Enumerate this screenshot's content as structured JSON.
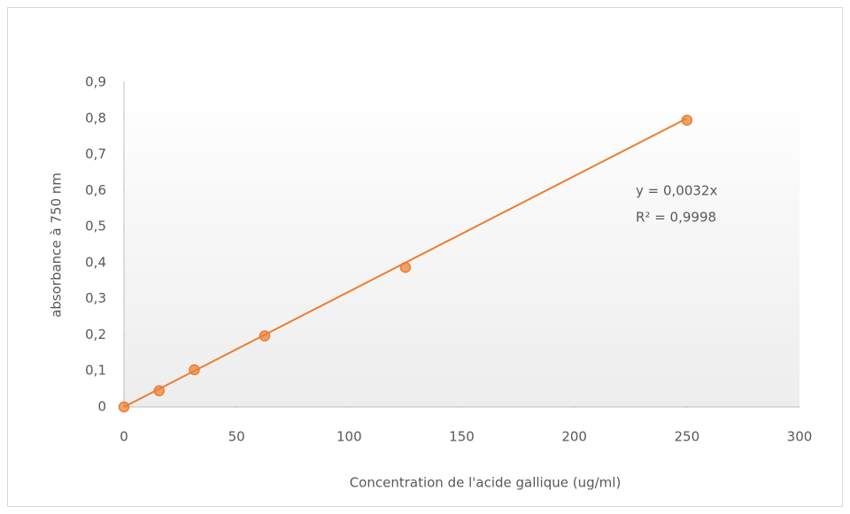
{
  "chart_data": {
    "type": "scatter",
    "x_label": "Concentration de l'acide gallique  (ug/ml)",
    "y_label": "absorbance à 750 nm",
    "series": [
      {
        "name": "absorbance",
        "color": "#ed7d31",
        "x": [
          0,
          15.625,
          31.25,
          62.5,
          125,
          250
        ],
        "values": [
          0,
          0.045,
          0.103,
          0.197,
          0.387,
          0.795
        ]
      }
    ],
    "trendline": {
      "slope": 0.0032,
      "equation": "y = 0,0032x",
      "r2": "R² = 0,9998"
    },
    "xlim": [
      0,
      300
    ],
    "xticks": [
      0,
      50,
      100,
      150,
      200,
      250,
      300
    ],
    "ylim": [
      0,
      0.9
    ],
    "yticks": [
      0,
      {
        "value": 0.1,
        "label": "0,1"
      },
      {
        "value": 0.2,
        "label": "0,2"
      },
      {
        "value": 0.3,
        "label": "0,3"
      },
      {
        "value": 0.4,
        "label": "0,4"
      },
      {
        "value": 0.5,
        "label": "0,5"
      },
      {
        "value": 0.6,
        "label": "0,6"
      },
      {
        "value": 0.7,
        "label": "0,7"
      },
      {
        "value": 0.8,
        "label": "0,8"
      },
      {
        "value": 0.9,
        "label": "0,9"
      }
    ],
    "grid": false
  }
}
